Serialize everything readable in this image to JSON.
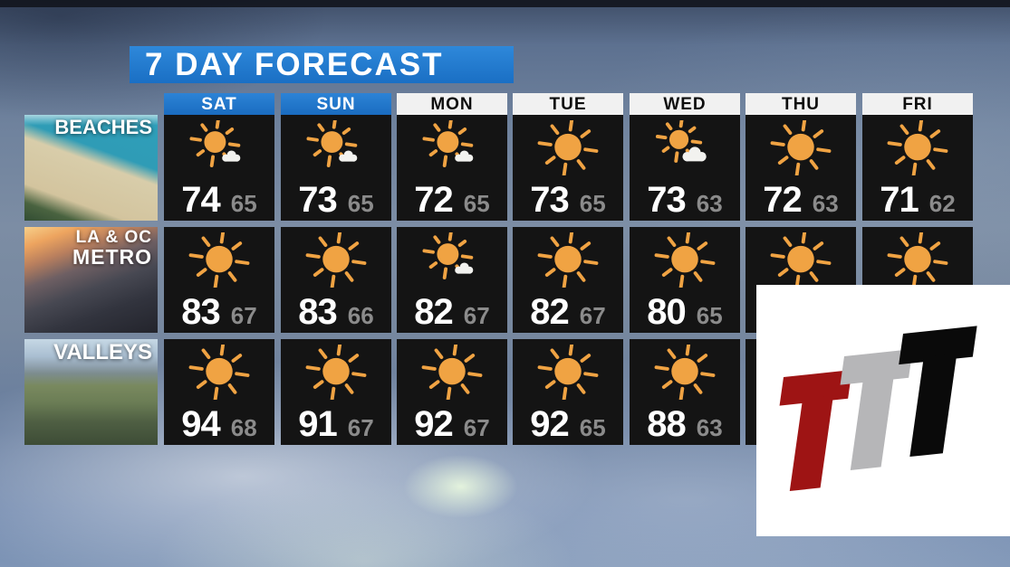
{
  "title": "7 DAY FORECAST",
  "days": [
    {
      "label": "SAT",
      "type": "weekend"
    },
    {
      "label": "SUN",
      "type": "weekend"
    },
    {
      "label": "MON",
      "type": "weekday"
    },
    {
      "label": "TUE",
      "type": "weekday"
    },
    {
      "label": "WED",
      "type": "weekday"
    },
    {
      "label": "THU",
      "type": "weekday"
    },
    {
      "label": "FRI",
      "type": "weekday"
    }
  ],
  "regions": [
    {
      "name": "BEACHES",
      "label_lines": [
        "BEACHES"
      ],
      "cells": [
        {
          "icon": "mostly-sunny",
          "high": 74,
          "low": 65
        },
        {
          "icon": "mostly-sunny",
          "high": 73,
          "low": 65
        },
        {
          "icon": "mostly-sunny",
          "high": 72,
          "low": 65
        },
        {
          "icon": "sunny",
          "high": 73,
          "low": 65
        },
        {
          "icon": "partly-cloudy",
          "high": 73,
          "low": 63
        },
        {
          "icon": "sunny",
          "high": 72,
          "low": 63
        },
        {
          "icon": "sunny",
          "high": 71,
          "low": 62
        }
      ]
    },
    {
      "name": "LA & OC METRO",
      "label_lines": [
        "LA & OC",
        "METRO"
      ],
      "cells": [
        {
          "icon": "sunny",
          "high": 83,
          "low": 67
        },
        {
          "icon": "sunny",
          "high": 83,
          "low": 66
        },
        {
          "icon": "mostly-sunny",
          "high": 82,
          "low": 67
        },
        {
          "icon": "sunny",
          "high": 82,
          "low": 67
        },
        {
          "icon": "sunny",
          "high": 80,
          "low": 65
        },
        {
          "icon": "sunny",
          "high": null,
          "low": null
        },
        {
          "icon": "sunny",
          "high": null,
          "low": null
        }
      ]
    },
    {
      "name": "VALLEYS",
      "label_lines": [
        "VALLEYS"
      ],
      "cells": [
        {
          "icon": "sunny",
          "high": 94,
          "low": 68
        },
        {
          "icon": "sunny",
          "high": 91,
          "low": 67
        },
        {
          "icon": "sunny",
          "high": 92,
          "low": 67
        },
        {
          "icon": "sunny",
          "high": 92,
          "low": 65
        },
        {
          "icon": "sunny",
          "high": 88,
          "low": 63
        },
        {
          "icon": null,
          "high": null,
          "low": null
        },
        {
          "icon": null,
          "high": null,
          "low": null
        }
      ]
    }
  ],
  "logo": {
    "letters": [
      "T",
      "T",
      "T"
    ],
    "letter_colors": [
      "#9e1414",
      "#b6b6b8",
      "#0a0a0a"
    ],
    "background": "#ffffff"
  },
  "colors": {
    "banner_blue": "#1c78cb",
    "weekend_header_blue": "#2378cd",
    "weekday_header_bg": "#f1f1f1",
    "cell_bg": "#141414",
    "high_temp": "#ffffff",
    "low_temp": "#8b8b8b",
    "sun": "#f0a343",
    "cloud": "#f2f2ef"
  },
  "chart_data": {
    "type": "table",
    "title": "7 DAY FORECAST",
    "columns": [
      "SAT",
      "SUN",
      "MON",
      "TUE",
      "WED",
      "THU",
      "FRI"
    ],
    "rows": [
      {
        "region": "BEACHES",
        "highs": [
          74,
          73,
          72,
          73,
          73,
          72,
          71
        ],
        "lows": [
          65,
          65,
          65,
          65,
          63,
          63,
          62
        ],
        "conditions": [
          "mostly-sunny",
          "mostly-sunny",
          "mostly-sunny",
          "sunny",
          "partly-cloudy",
          "sunny",
          "sunny"
        ]
      },
      {
        "region": "LA & OC METRO",
        "highs": [
          83,
          83,
          82,
          82,
          80,
          null,
          null
        ],
        "lows": [
          67,
          66,
          67,
          67,
          65,
          null,
          null
        ],
        "conditions": [
          "sunny",
          "sunny",
          "mostly-sunny",
          "sunny",
          "sunny",
          "sunny",
          "sunny"
        ]
      },
      {
        "region": "VALLEYS",
        "highs": [
          94,
          91,
          92,
          92,
          88,
          null,
          null
        ],
        "lows": [
          68,
          67,
          67,
          65,
          63,
          null,
          null
        ],
        "conditions": [
          "sunny",
          "sunny",
          "sunny",
          "sunny",
          "sunny",
          null,
          null
        ]
      }
    ],
    "notes": "THU/FRI temperatures for LA & OC METRO and all VALLEYS THU/FRI data are covered by the station logo overlay"
  }
}
